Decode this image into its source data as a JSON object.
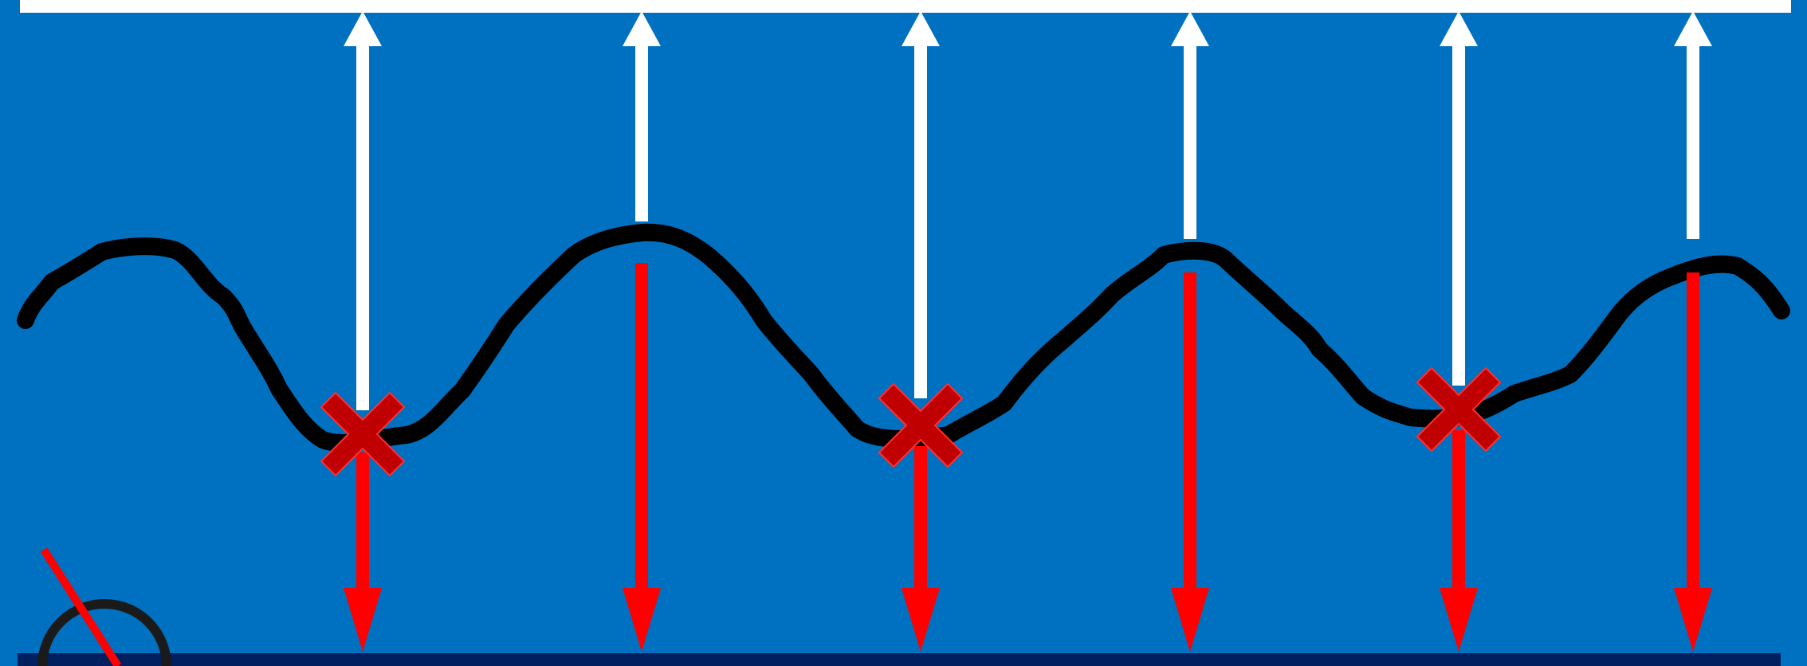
{
  "colors": {
    "background": "#0070c0",
    "top_bar": "#ffffff",
    "bottom_bar": "#002060",
    "wave": "#000000",
    "white_arrow": "#ffffff",
    "red_arrow": "#ff0000",
    "cross": "#c00000",
    "cross_outline": "#ff3030",
    "probe_ring": "#1a1a1a",
    "probe_needle": "#ff0000"
  },
  "columns": [
    {
      "id": "c1",
      "has_cross": true
    },
    {
      "id": "c2",
      "has_cross": false
    },
    {
      "id": "c3",
      "has_cross": true
    },
    {
      "id": "c4",
      "has_cross": false
    },
    {
      "id": "c5",
      "has_cross": true
    },
    {
      "id": "c6",
      "has_cross": false
    }
  ],
  "icons": {
    "white_arrow": "arrow-up-icon",
    "red_arrow": "arrow-down-icon",
    "cross": "cross-mark-icon",
    "probe": "probe-icon"
  }
}
